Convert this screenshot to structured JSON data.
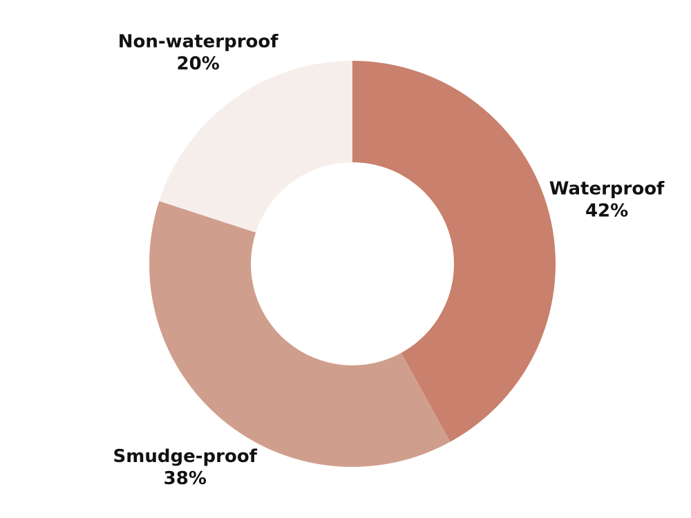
{
  "chart_data": {
    "type": "pie",
    "donut": true,
    "title": "",
    "start_angle_deg": 0,
    "direction": "clockwise",
    "slices": [
      {
        "name": "Waterproof",
        "label": "Waterproof",
        "value": 42,
        "value_label": "42%",
        "color": "#C9806D"
      },
      {
        "name": "Smudge-proof",
        "label": "Smudge-proof",
        "value": 38,
        "value_label": "38%",
        "color": "#D09E8C"
      },
      {
        "name": "Non-waterproof",
        "label": "Non-waterproof",
        "value": 20,
        "value_label": "20%",
        "color": "#F6EEEA"
      }
    ]
  }
}
